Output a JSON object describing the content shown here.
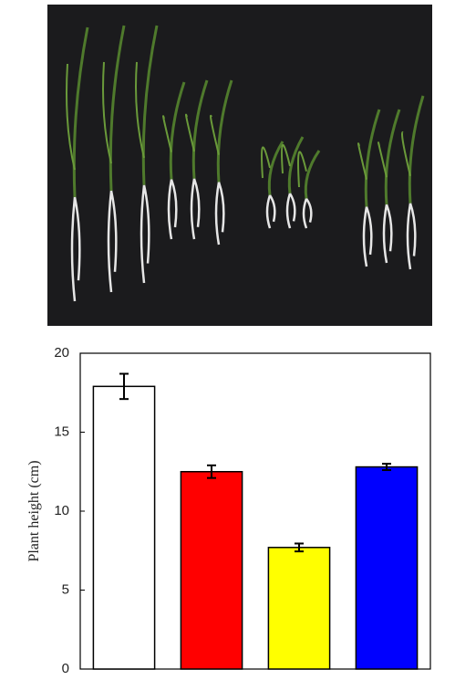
{
  "chart_data": {
    "type": "bar",
    "y_label": "Plant height (cm)",
    "categories": [
      null,
      null,
      null,
      null
    ],
    "values": [
      17.9,
      12.5,
      7.7,
      12.8
    ],
    "errors": [
      0.8,
      0.4,
      0.25,
      0.2
    ],
    "colors": [
      "#ffffff",
      "#ff0000",
      "#ffff00",
      "#0000ff"
    ],
    "ylim": [
      0,
      20
    ],
    "yticks": [
      0,
      5,
      10,
      15,
      20
    ]
  }
}
